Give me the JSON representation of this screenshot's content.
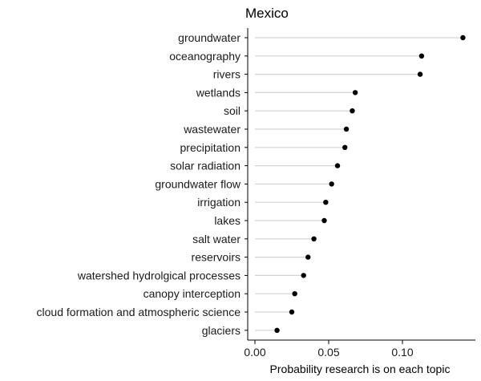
{
  "chart_data": {
    "type": "dot",
    "title": "Mexico",
    "xlabel": "Probability research is on each topic",
    "ylabel": "",
    "xlim": [
      0,
      0.145
    ],
    "xticks": [
      0.0,
      0.05,
      0.1
    ],
    "xtick_labels": [
      "0.00",
      "0.05",
      "0.10"
    ],
    "grid": false,
    "categories": [
      "groundwater",
      "oceanography",
      "rivers",
      "wetlands",
      "soil",
      "wastewater",
      "precipitation",
      "solar radiation",
      "groundwater flow",
      "irrigation",
      "lakes",
      "salt water",
      "reservoirs",
      "watershed hydrolgical processes",
      "canopy interception",
      "cloud formation and atmospheric science",
      "glaciers"
    ],
    "values": [
      0.141,
      0.113,
      0.112,
      0.068,
      0.066,
      0.062,
      0.061,
      0.056,
      0.052,
      0.048,
      0.047,
      0.04,
      0.036,
      0.033,
      0.027,
      0.025,
      0.015
    ],
    "colors": {
      "point": "#000000",
      "segment": "#d3d3d3",
      "axis": "#000000"
    }
  }
}
